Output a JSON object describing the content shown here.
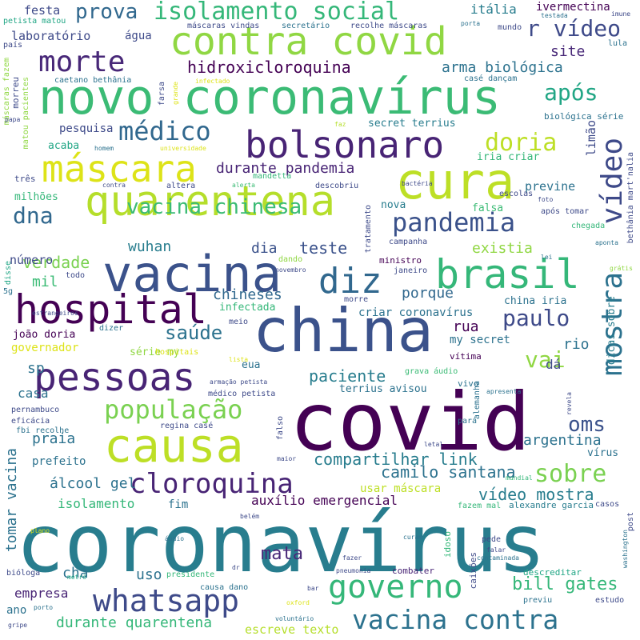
{
  "palette": {
    "dark_purple": "#440154",
    "indigo": "#3b528b",
    "blue": "#31688e",
    "teal": "#21918c",
    "green": "#35b779",
    "lime": "#90d743",
    "yellow": "#fde725",
    "yellow_green": "#bddf26"
  },
  "words": [
    {
      "text": "coronavírus"
    },
    {
      "text": "covid"
    },
    {
      "text": "china"
    },
    {
      "text": "novo coronavírus"
    },
    {
      "text": "vacina"
    },
    {
      "text": "cura"
    },
    {
      "text": "causa"
    },
    {
      "text": "hospital"
    },
    {
      "text": "bolsonaro"
    },
    {
      "text": "pessoas"
    },
    {
      "text": "contra covid"
    },
    {
      "text": "quarentena"
    },
    {
      "text": "brasil"
    },
    {
      "text": "máscara"
    },
    {
      "text": "diz"
    },
    {
      "text": "governo"
    },
    {
      "text": "whatsapp"
    },
    {
      "text": "vacina contra"
    },
    {
      "text": "cloroquina"
    },
    {
      "text": "morte"
    },
    {
      "text": "mostra"
    },
    {
      "text": "vídeo"
    },
    {
      "text": "pandemia"
    },
    {
      "text": "população"
    },
    {
      "text": "médico"
    },
    {
      "text": "isolamento social"
    },
    {
      "text": "r vídeo"
    },
    {
      "text": "após"
    },
    {
      "text": "sobre"
    },
    {
      "text": "doria"
    },
    {
      "text": "vacina chinesa"
    },
    {
      "text": "paulo"
    },
    {
      "text": "vai"
    },
    {
      "text": "dna"
    },
    {
      "text": "saúde"
    },
    {
      "text": "prova"
    },
    {
      "text": "oms"
    },
    {
      "text": "compartilhar link"
    },
    {
      "text": "hidroxicloroquina"
    },
    {
      "text": "bill gates"
    },
    {
      "text": "paciente"
    },
    {
      "text": "teste"
    },
    {
      "text": "verdade"
    },
    {
      "text": "durante pandemia"
    },
    {
      "text": "chineses"
    },
    {
      "text": "camilo santana"
    },
    {
      "text": "vídeo mostra"
    },
    {
      "text": "durante quarentena"
    },
    {
      "text": "auxílio emergencial"
    },
    {
      "text": "álcool gel"
    },
    {
      "text": "mata"
    },
    {
      "text": "existia"
    },
    {
      "text": "arma biológica"
    },
    {
      "text": "dia"
    },
    {
      "text": "wuhan"
    },
    {
      "text": "porque"
    },
    {
      "text": "tomar vacina"
    },
    {
      "text": "argentina"
    },
    {
      "text": "rio"
    },
    {
      "text": "praia"
    },
    {
      "text": "site"
    },
    {
      "text": "rua"
    },
    {
      "text": "doria"
    },
    {
      "text": "sp"
    },
    {
      "text": "mil"
    },
    {
      "text": "casa"
    },
    {
      "text": "isolamento"
    },
    {
      "text": "uso"
    },
    {
      "text": "empresa"
    },
    {
      "text": "dá"
    },
    {
      "text": "chá"
    },
    {
      "text": "escreve texto"
    },
    {
      "text": "previne"
    },
    {
      "text": "número"
    },
    {
      "text": "pesquisa"
    },
    {
      "text": "água"
    },
    {
      "text": "festa"
    },
    {
      "text": "itália"
    },
    {
      "text": "laboratório"
    },
    {
      "text": "limão"
    },
    {
      "text": "governador"
    },
    {
      "text": "fim"
    },
    {
      "text": "nova"
    },
    {
      "text": "falsa"
    },
    {
      "text": "prefeito"
    },
    {
      "text": "usar máscara"
    },
    {
      "text": "ivermectina"
    },
    {
      "text": "mundo"
    },
    {
      "text": "ano"
    },
    {
      "text": "my secret"
    },
    {
      "text": "milhões"
    },
    {
      "text": "criar coronavírus"
    },
    {
      "text": "iria criar"
    },
    {
      "text": "china iria"
    },
    {
      "text": "secret terrius"
    },
    {
      "text": "infectada"
    },
    {
      "text": "terrius avisou"
    },
    {
      "text": "série my"
    },
    {
      "text": "joão doria"
    },
    {
      "text": "eua"
    },
    {
      "text": "acaba"
    },
    {
      "text": "vírus"
    },
    {
      "text": "três"
    },
    {
      "text": "dicas sobre"
    },
    {
      "text": "ministro"
    },
    {
      "text": "vítima"
    },
    {
      "text": "vivo"
    },
    {
      "text": "morre"
    },
    {
      "text": "meio"
    },
    {
      "text": "hospitais"
    },
    {
      "text": "dizer"
    },
    {
      "text": "caixões"
    },
    {
      "text": "idoso"
    },
    {
      "text": "combater"
    },
    {
      "text": "descreditar"
    },
    {
      "text": "alexandre garcia"
    },
    {
      "text": "bethânia mart'nalia"
    },
    {
      "text": "biológica série"
    },
    {
      "text": "caetano bethânia"
    },
    {
      "text": "máscaras vindas"
    },
    {
      "text": "recolhe máscaras"
    },
    {
      "text": "secretário"
    },
    {
      "text": "petista matou"
    },
    {
      "text": "máscaras fazem"
    },
    {
      "text": "matou pacientes"
    },
    {
      "text": "morreu"
    },
    {
      "text": "país"
    },
    {
      "text": "farsa"
    },
    {
      "text": "grande"
    },
    {
      "text": "infectado"
    },
    {
      "text": "casé dançam"
    },
    {
      "text": "bactéria"
    },
    {
      "text": "escolas"
    },
    {
      "text": "mandetta"
    },
    {
      "text": "descobriu"
    },
    {
      "text": "alerta"
    },
    {
      "text": "altera"
    },
    {
      "text": "contra"
    },
    {
      "text": "homem"
    },
    {
      "text": "universidade"
    },
    {
      "text": "papa"
    },
    {
      "text": "faz"
    },
    {
      "text": "disse"
    },
    {
      "text": "5g"
    },
    {
      "text": "todo"
    },
    {
      "text": "estrangeiros"
    },
    {
      "text": "dando"
    },
    {
      "text": "novembro"
    },
    {
      "text": "janeiro"
    },
    {
      "text": "tratamento"
    },
    {
      "text": "campanha"
    },
    {
      "text": "lei"
    },
    {
      "text": "grátis"
    },
    {
      "text": "aponta"
    },
    {
      "text": "chegada"
    },
    {
      "text": "foto"
    },
    {
      "text": "após tomar"
    },
    {
      "text": "imune"
    },
    {
      "text": "lula"
    },
    {
      "text": "testada"
    },
    {
      "text": "porta"
    },
    {
      "text": "lista"
    },
    {
      "text": "pernambuco"
    },
    {
      "text": "eficácia"
    },
    {
      "text": "fbi recolhe"
    },
    {
      "text": "regina casé"
    },
    {
      "text": "médico petista"
    },
    {
      "text": "armação petista"
    },
    {
      "text": "falso"
    },
    {
      "text": "maior"
    },
    {
      "text": "letal"
    },
    {
      "text": "pará"
    },
    {
      "text": "alemanha"
    },
    {
      "text": "grava áudio"
    },
    {
      "text": "apresenta"
    },
    {
      "text": "revela"
    },
    {
      "text": "belém"
    },
    {
      "text": "plano"
    },
    {
      "text": "áudio"
    },
    {
      "text": "curam"
    },
    {
      "text": "fazem mal"
    },
    {
      "text": "casos"
    },
    {
      "text": "post"
    },
    {
      "text": "washington"
    },
    {
      "text": "pede"
    },
    {
      "text": "falar"
    },
    {
      "text": "fazer"
    },
    {
      "text": "contaminada"
    },
    {
      "text": "pneumonia"
    },
    {
      "text": "dr"
    },
    {
      "text": "presidente"
    },
    {
      "text": "bióloga"
    },
    {
      "text": "metrô"
    },
    {
      "text": "causa dano"
    },
    {
      "text": "bar"
    },
    {
      "text": "oxford"
    },
    {
      "text": "voluntário"
    },
    {
      "text": "porto"
    },
    {
      "text": "gripe"
    },
    {
      "text": "previu"
    },
    {
      "text": "estudo"
    },
    {
      "text": "mundial"
    }
  ]
}
